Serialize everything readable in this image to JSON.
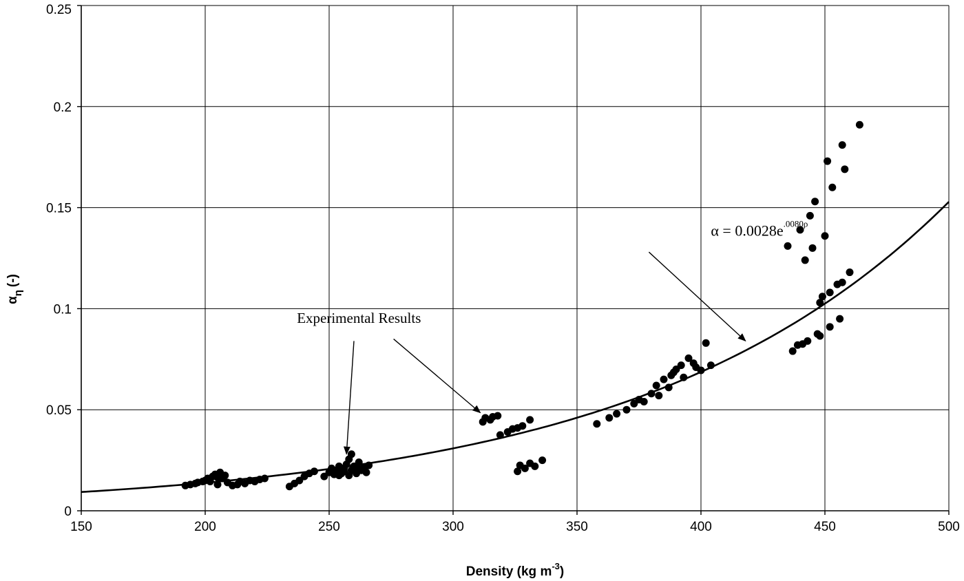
{
  "chart_data": {
    "type": "scatter",
    "title": "",
    "xlabel": "Density (kg m",
    "xlabel_sup": "-3",
    "xlabel_close": ")",
    "ylabel": "α",
    "ylabel_sub": "η",
    "ylabel_unit": "(-)",
    "xlim": [
      150,
      500
    ],
    "ylim": [
      0,
      0.25
    ],
    "x_ticks": [
      150,
      200,
      250,
      300,
      350,
      400,
      450,
      500
    ],
    "x_tick_labels": [
      "150",
      "200",
      "250",
      "300",
      "350",
      "400",
      "450",
      "500"
    ],
    "y_ticks": [
      0,
      0.05,
      0.1,
      0.15,
      0.2,
      0.25
    ],
    "y_tick_labels": [
      "0",
      "0.05",
      "0.1",
      "0.15",
      "0.2",
      "0.25"
    ],
    "grid": true,
    "series": [
      {
        "kind": "scatter",
        "points": [
          [
            192,
            0.0125
          ],
          [
            194,
            0.013
          ],
          [
            196,
            0.0135
          ],
          [
            197,
            0.014
          ],
          [
            199,
            0.0145
          ],
          [
            200,
            0.015
          ],
          [
            201,
            0.016
          ],
          [
            202,
            0.0145
          ],
          [
            203,
            0.017
          ],
          [
            204,
            0.018
          ],
          [
            205,
            0.0165
          ],
          [
            206,
            0.019
          ],
          [
            207,
            0.016
          ],
          [
            205,
            0.013
          ],
          [
            208,
            0.0175
          ],
          [
            209,
            0.014
          ],
          [
            211,
            0.0125
          ],
          [
            213,
            0.013
          ],
          [
            214,
            0.0145
          ],
          [
            216,
            0.0135
          ],
          [
            218,
            0.015
          ],
          [
            220,
            0.0145
          ],
          [
            222,
            0.0155
          ],
          [
            224,
            0.016
          ],
          [
            234,
            0.012
          ],
          [
            236,
            0.0135
          ],
          [
            238,
            0.015
          ],
          [
            240,
            0.017
          ],
          [
            242,
            0.0185
          ],
          [
            244,
            0.0195
          ],
          [
            248,
            0.017
          ],
          [
            250,
            0.019
          ],
          [
            251,
            0.021
          ],
          [
            252,
            0.018
          ],
          [
            253,
            0.02
          ],
          [
            254,
            0.022
          ],
          [
            255,
            0.0185
          ],
          [
            256,
            0.021
          ],
          [
            257,
            0.023
          ],
          [
            258,
            0.0175
          ],
          [
            258,
            0.0255
          ],
          [
            259,
            0.02
          ],
          [
            259,
            0.028
          ],
          [
            260,
            0.022
          ],
          [
            261,
            0.0185
          ],
          [
            262,
            0.024
          ],
          [
            263,
            0.02
          ],
          [
            264,
            0.0215
          ],
          [
            265,
            0.019
          ],
          [
            266,
            0.0225
          ],
          [
            254,
            0.0175
          ],
          [
            256,
            0.0195
          ],
          [
            262,
            0.0205
          ],
          [
            312,
            0.044
          ],
          [
            313,
            0.046
          ],
          [
            315,
            0.045
          ],
          [
            316,
            0.0465
          ],
          [
            318,
            0.047
          ],
          [
            319,
            0.0375
          ],
          [
            322,
            0.039
          ],
          [
            324,
            0.0405
          ],
          [
            326,
            0.041
          ],
          [
            328,
            0.042
          ],
          [
            331,
            0.045
          ],
          [
            326,
            0.0195
          ],
          [
            327,
            0.0225
          ],
          [
            329,
            0.021
          ],
          [
            331,
            0.0235
          ],
          [
            333,
            0.022
          ],
          [
            336,
            0.025
          ],
          [
            358,
            0.043
          ],
          [
            363,
            0.046
          ],
          [
            366,
            0.048
          ],
          [
            370,
            0.05
          ],
          [
            373,
            0.053
          ],
          [
            375,
            0.055
          ],
          [
            377,
            0.054
          ],
          [
            380,
            0.058
          ],
          [
            382,
            0.062
          ],
          [
            383,
            0.057
          ],
          [
            385,
            0.065
          ],
          [
            387,
            0.061
          ],
          [
            388,
            0.067
          ],
          [
            389,
            0.0685
          ],
          [
            390,
            0.07
          ],
          [
            392,
            0.072
          ],
          [
            393,
            0.066
          ],
          [
            395,
            0.0755
          ],
          [
            397,
            0.073
          ],
          [
            398,
            0.071
          ],
          [
            400,
            0.0695
          ],
          [
            402,
            0.083
          ],
          [
            404,
            0.072
          ],
          [
            435,
            0.131
          ],
          [
            437,
            0.079
          ],
          [
            439,
            0.082
          ],
          [
            440,
            0.139
          ],
          [
            441,
            0.0825
          ],
          [
            442,
            0.124
          ],
          [
            443,
            0.084
          ],
          [
            444,
            0.146
          ],
          [
            445,
            0.13
          ],
          [
            446,
            0.153
          ],
          [
            447,
            0.0875
          ],
          [
            448,
            0.103
          ],
          [
            448,
            0.0865
          ],
          [
            449,
            0.106
          ],
          [
            450,
            0.136
          ],
          [
            451,
            0.173
          ],
          [
            452,
            0.108
          ],
          [
            452,
            0.091
          ],
          [
            453,
            0.16
          ],
          [
            455,
            0.112
          ],
          [
            456,
            0.095
          ],
          [
            457,
            0.113
          ],
          [
            457,
            0.181
          ],
          [
            458,
            0.169
          ],
          [
            460,
            0.118
          ],
          [
            464,
            0.191
          ]
        ]
      },
      {
        "kind": "line",
        "equation": "α = 0.0028e^(0.0080ρ)",
        "coefficient": 0.0028,
        "rate": 0.008
      }
    ],
    "annotations": [
      {
        "label": "Experimental Results",
        "x": 237,
        "y": 0.093
      },
      {
        "label": "α = 0.0028e",
        "label_sup": ".0080ρ",
        "x": 404,
        "y": 0.136
      }
    ]
  }
}
